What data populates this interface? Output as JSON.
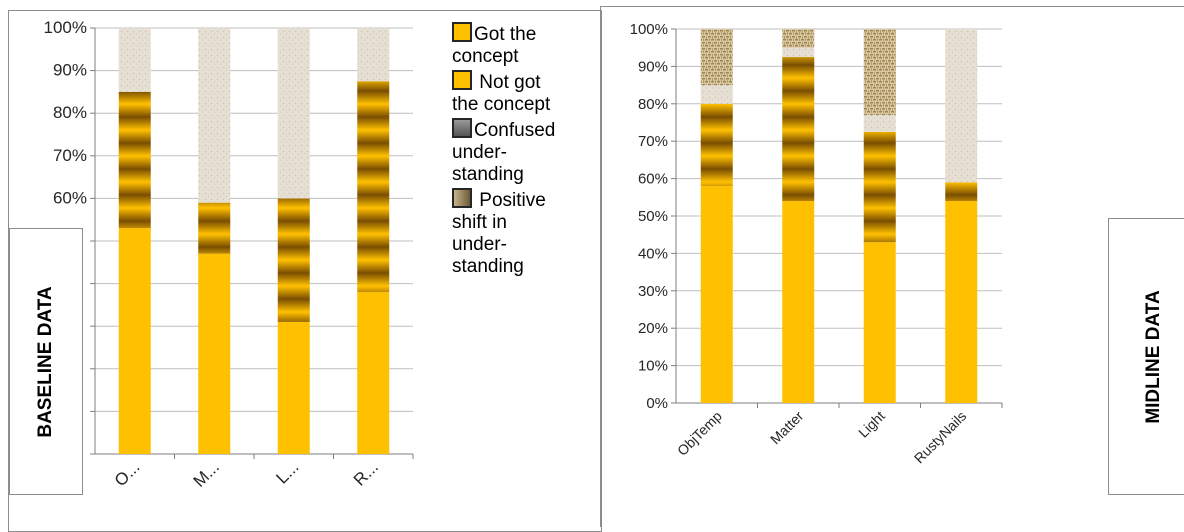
{
  "colors": {
    "got": "#FFC000",
    "not_got": "#B8860B",
    "confused": "#E0D8CB",
    "positive_shift": "#C8B48A",
    "axis": "#7f7f7f",
    "grid": "#bfbfbf"
  },
  "legend": {
    "items": [
      {
        "label": "Got the\nconcept",
        "swatch": "got-swatch"
      },
      {
        "label": " Not got\nthe concept",
        "swatch": "not-got-swatch"
      },
      {
        "label": "Confused\nunder-\nstanding",
        "swatch": "confused-swatch"
      },
      {
        "label": " Positive\nshift in\nunder-\nstanding",
        "swatch": "positive-shift-swatch"
      }
    ]
  },
  "baseline_label": "BASELINE DATA",
  "midline_label": "MIDLINE DATA",
  "chart_data": [
    {
      "type": "bar",
      "stacked": true,
      "title": "",
      "categories": [
        "O...",
        "M...",
        "L...",
        "R..."
      ],
      "ylim": [
        0,
        100
      ],
      "yticks": [
        "100%",
        "90%",
        "80%",
        "70%",
        "60%"
      ],
      "grid": true,
      "legend_position": "right",
      "series": [
        {
          "name": "Got the concept",
          "values": [
            53,
            47,
            31,
            38
          ]
        },
        {
          "name": "Not got the concept",
          "values": [
            32,
            12,
            29,
            49.5
          ]
        },
        {
          "name": "Confused understanding",
          "values": [
            15,
            41,
            40,
            12.5
          ]
        }
      ]
    },
    {
      "type": "bar",
      "stacked": true,
      "title": "",
      "categories": [
        "ObjTemp",
        "Matter",
        "Light",
        "RustyNails"
      ],
      "ylim": [
        0,
        100
      ],
      "yticks": [
        "100%",
        "90%",
        "80%",
        "70%",
        "60%",
        "50%",
        "40%",
        "30%",
        "20%",
        "10%",
        "0%"
      ],
      "grid": true,
      "series": [
        {
          "name": "Got the concept",
          "values": [
            58,
            54,
            43,
            54
          ]
        },
        {
          "name": "Not got the concept",
          "values": [
            22,
            38.5,
            29.5,
            5
          ]
        },
        {
          "name": "Confused understanding",
          "values": [
            5,
            2.5,
            4.5,
            41
          ]
        },
        {
          "name": "Positive shift in understanding",
          "values": [
            15,
            5,
            23,
            0
          ]
        }
      ]
    }
  ]
}
